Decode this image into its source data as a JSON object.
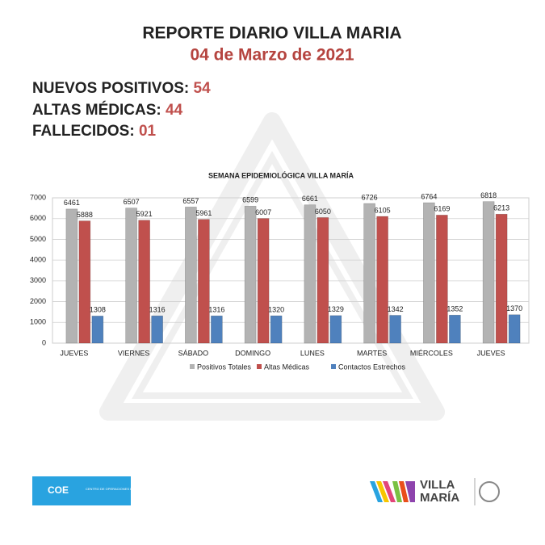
{
  "header": {
    "title": "REPORTE DIARIO VILLA MARIA",
    "date": "04 de Marzo de 2021"
  },
  "stats": [
    {
      "label": "NUEVOS POSITIVOS:",
      "value": "54"
    },
    {
      "label": "ALTAS MÉDICAS:",
      "value": "44"
    },
    {
      "label": "FALLECIDOS:",
      "value": "01"
    }
  ],
  "chart_data": {
    "type": "bar",
    "title": "SEMANA EPIDEMIOLÓGICA VILLA MARÍA",
    "categories": [
      "JUEVES",
      "VIERNES",
      "SÁBADO",
      "DOMINGO",
      "LUNES",
      "MARTES",
      "MIÉRCOLES",
      "JUEVES"
    ],
    "series": [
      {
        "name": "Positivos Totales",
        "color": "#b3b3b3",
        "values": [
          6461,
          6507,
          6557,
          6599,
          6661,
          6726,
          6764,
          6818
        ]
      },
      {
        "name": "Altas Médicas",
        "color": "#c0504d",
        "values": [
          5888,
          5921,
          5961,
          6007,
          6050,
          6105,
          6169,
          6213
        ]
      },
      {
        "name": "Contactos Estrechos",
        "color": "#4f81bd",
        "values": [
          1308,
          1316,
          1316,
          1320,
          1329,
          1342,
          1352,
          1370
        ]
      }
    ],
    "ylim": [
      0,
      7000
    ],
    "yticks": [
      0,
      1000,
      2000,
      3000,
      4000,
      5000,
      6000,
      7000
    ],
    "grid": true
  },
  "footer": {
    "coe": "COE",
    "coe_subtitle": "CENTRO DE OPERACIONES DE EMERGENCIAS",
    "city": [
      "VILLA",
      "MARÍA"
    ]
  }
}
